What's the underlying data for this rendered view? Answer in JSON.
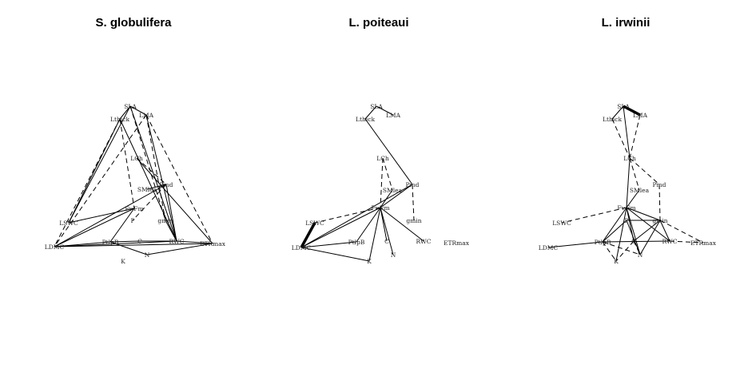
{
  "panels": [
    {
      "id": "sglob",
      "title": "S. globulifera",
      "nodes": {
        "SLA": {
          "label": "SLA"
        },
        "LMA": {
          "label": "LMA"
        },
        "Lthick": {
          "label": "Lthick"
        },
        "LCh": {
          "label": "LCh"
        },
        "Pmd": {
          "label": "Pmd"
        },
        "SMlea": {
          "label": "SMlea"
        },
        "FvFm": {
          "label": "Fv.Fm"
        },
        "P": {
          "label": "P"
        },
        "gmin": {
          "label": "gmin"
        },
        "LSWC": {
          "label": "LSWC"
        },
        "LDMC": {
          "label": "LDMC"
        },
        "PtlpB": {
          "label": "PtlpB"
        },
        "C": {
          "label": "C"
        },
        "RWC": {
          "label": "RWC"
        },
        "ETRmax": {
          "label": "ETRmax"
        },
        "N": {
          "label": "N"
        },
        "K": {
          "label": "K"
        }
      },
      "edges": [
        {
          "a": "SLA",
          "b": "LMA",
          "s": "solid"
        },
        {
          "a": "SLA",
          "b": "Lthick",
          "s": "solid"
        },
        {
          "a": "Lthick",
          "b": "LSWC",
          "s": "solid"
        },
        {
          "a": "Lthick",
          "b": "LDMC",
          "s": "dashed"
        },
        {
          "a": "Lthick",
          "b": "FvFm",
          "s": "dashed"
        },
        {
          "a": "Lthick",
          "b": "RWC",
          "s": "solid"
        },
        {
          "a": "SLA",
          "b": "LSWC",
          "s": "solid"
        },
        {
          "a": "SLA",
          "b": "RWC",
          "s": "solid"
        },
        {
          "a": "SLA",
          "b": "gmin",
          "s": "dashed"
        },
        {
          "a": "LMA",
          "b": "RWC",
          "s": "solid"
        },
        {
          "a": "LMA",
          "b": "ETRmax",
          "s": "dashed"
        },
        {
          "a": "LMA",
          "b": "gmin",
          "s": "dashed"
        },
        {
          "a": "LMA",
          "b": "LDMC",
          "s": "dashed"
        },
        {
          "a": "LCh",
          "b": "ETRmax",
          "s": "solid"
        },
        {
          "a": "LCh",
          "b": "Pmd",
          "s": "dashed"
        },
        {
          "a": "Pmd",
          "b": "P",
          "s": "dashed"
        },
        {
          "a": "Pmd",
          "b": "LDMC",
          "s": "solid"
        },
        {
          "a": "Pmd",
          "b": "RWC",
          "s": "solid"
        },
        {
          "a": "SMlea",
          "b": "Pmd",
          "s": "solid"
        },
        {
          "a": "FvFm",
          "b": "LDMC",
          "s": "solid"
        },
        {
          "a": "FvFm",
          "b": "PtlpB",
          "s": "solid"
        },
        {
          "a": "LSWC",
          "b": "FvFm",
          "s": "solid"
        },
        {
          "a": "LDMC",
          "b": "RWC",
          "s": "solid"
        },
        {
          "a": "LDMC",
          "b": "ETRmax",
          "s": "solid"
        },
        {
          "a": "LDMC",
          "b": "PtlpB",
          "s": "solid"
        },
        {
          "a": "PtlpB",
          "b": "C",
          "s": "solid"
        },
        {
          "a": "C",
          "b": "RWC",
          "s": "solid"
        },
        {
          "a": "RWC",
          "b": "ETRmax",
          "s": "solid"
        },
        {
          "a": "ETRmax",
          "b": "N",
          "s": "solid"
        },
        {
          "a": "gmin",
          "b": "RWC",
          "s": "solid"
        },
        {
          "a": "PtlpB",
          "b": "N",
          "s": "solid"
        }
      ]
    },
    {
      "id": "lpoit",
      "title": "L. poiteaui",
      "nodes": {
        "SLA": {
          "label": "SLA"
        },
        "LMA": {
          "label": "LMA"
        },
        "Lthick": {
          "label": "Lthick"
        },
        "LCh": {
          "label": "LCh"
        },
        "Pmd": {
          "label": "Pmd"
        },
        "SMlea": {
          "label": "SMlea"
        },
        "FvFm": {
          "label": "Fv.Fm"
        },
        "gmin": {
          "label": "gmin"
        },
        "LSWC": {
          "label": "LSWC"
        },
        "LDMC": {
          "label": "LDMC"
        },
        "PtlpB": {
          "label": "PtlpB"
        },
        "C": {
          "label": "C"
        },
        "RWC": {
          "label": "RWC"
        },
        "ETRmax": {
          "label": "ETRmax"
        },
        "N": {
          "label": "N"
        },
        "K": {
          "label": "K"
        }
      },
      "edges": [
        {
          "a": "SLA",
          "b": "LMA",
          "s": "solid"
        },
        {
          "a": "SLA",
          "b": "Lthick",
          "s": "solid"
        },
        {
          "a": "Lthick",
          "b": "Pmd",
          "s": "solid"
        },
        {
          "a": "LCh",
          "b": "FvFm",
          "s": "dashed"
        },
        {
          "a": "LCh",
          "b": "SMlea",
          "s": "dashed"
        },
        {
          "a": "Pmd",
          "b": "gmin",
          "s": "dashed"
        },
        {
          "a": "Pmd",
          "b": "LDMC",
          "s": "solid"
        },
        {
          "a": "Pmd",
          "b": "FvFm",
          "s": "solid"
        },
        {
          "a": "SMlea",
          "b": "FvFm",
          "s": "solid"
        },
        {
          "a": "FvFm",
          "b": "LSWC",
          "s": "dashed"
        },
        {
          "a": "FvFm",
          "b": "LDMC",
          "s": "solid"
        },
        {
          "a": "FvFm",
          "b": "PtlpB",
          "s": "solid"
        },
        {
          "a": "FvFm",
          "b": "C",
          "s": "solid"
        },
        {
          "a": "FvFm",
          "b": "N",
          "s": "solid"
        },
        {
          "a": "FvFm",
          "b": "RWC",
          "s": "solid"
        },
        {
          "a": "FvFm",
          "b": "K",
          "s": "solid"
        },
        {
          "a": "LDMC",
          "b": "K",
          "s": "solid"
        },
        {
          "a": "LDMC",
          "b": "PtlpB",
          "s": "solid"
        },
        {
          "a": "LSWC",
          "b": "LDMC",
          "s": "thick"
        }
      ]
    },
    {
      "id": "lirw",
      "title": "L. irwinii",
      "nodes": {
        "SLA": {
          "label": "SLA"
        },
        "LMA": {
          "label": "LMA"
        },
        "Lthick": {
          "label": "Lthick"
        },
        "LCh": {
          "label": "LCh"
        },
        "Pmd": {
          "label": "Pmd"
        },
        "SMlea": {
          "label": "SMlea"
        },
        "FvFm": {
          "label": "Fv.Fm"
        },
        "P": {
          "label": "P"
        },
        "gmin": {
          "label": "gmin"
        },
        "LSWC": {
          "label": "LSWC"
        },
        "LDMC": {
          "label": "LDMC"
        },
        "PtlpB": {
          "label": "PtlpB"
        },
        "C": {
          "label": "C"
        },
        "RWC": {
          "label": "RWC"
        },
        "ETRmax": {
          "label": "ETRmax"
        },
        "N": {
          "label": "N"
        },
        "K": {
          "label": "K"
        }
      },
      "edges": [
        {
          "a": "SLA",
          "b": "LMA",
          "s": "thick"
        },
        {
          "a": "SLA",
          "b": "Lthick",
          "s": "solid"
        },
        {
          "a": "Lthick",
          "b": "LCh",
          "s": "dashed"
        },
        {
          "a": "LMA",
          "b": "LCh",
          "s": "dashed"
        },
        {
          "a": "SLA",
          "b": "LCh",
          "s": "solid"
        },
        {
          "a": "LCh",
          "b": "FvFm",
          "s": "solid"
        },
        {
          "a": "LCh",
          "b": "Pmd",
          "s": "dashed"
        },
        {
          "a": "LCh",
          "b": "SMlea",
          "s": "dashed"
        },
        {
          "a": "Pmd",
          "b": "gmin",
          "s": "dashed"
        },
        {
          "a": "SMlea",
          "b": "FvFm",
          "s": "solid"
        },
        {
          "a": "FvFm",
          "b": "LSWC",
          "s": "dashed"
        },
        {
          "a": "FvFm",
          "b": "PtlpB",
          "s": "solid"
        },
        {
          "a": "FvFm",
          "b": "gmin",
          "s": "solid"
        },
        {
          "a": "FvFm",
          "b": "C",
          "s": "solid"
        },
        {
          "a": "FvFm",
          "b": "N",
          "s": "solid"
        },
        {
          "a": "FvFm",
          "b": "RWC",
          "s": "solid"
        },
        {
          "a": "FvFm",
          "b": "K",
          "s": "solid"
        },
        {
          "a": "P",
          "b": "N",
          "s": "solid"
        },
        {
          "a": "P",
          "b": "PtlpB",
          "s": "solid"
        },
        {
          "a": "gmin",
          "b": "ETRmax",
          "s": "dashed"
        },
        {
          "a": "gmin",
          "b": "RWC",
          "s": "solid"
        },
        {
          "a": "gmin",
          "b": "N",
          "s": "solid"
        },
        {
          "a": "gmin",
          "b": "C",
          "s": "solid"
        },
        {
          "a": "gmin",
          "b": "P",
          "s": "solid"
        },
        {
          "a": "RWC",
          "b": "ETRmax",
          "s": "dashed"
        },
        {
          "a": "RWC",
          "b": "PtlpB",
          "s": "solid"
        },
        {
          "a": "PtlpB",
          "b": "N",
          "s": "dashed"
        },
        {
          "a": "PtlpB",
          "b": "K",
          "s": "dashed"
        },
        {
          "a": "C",
          "b": "N",
          "s": "dashed"
        },
        {
          "a": "LDMC",
          "b": "PtlpB",
          "s": "solid"
        },
        {
          "a": "C",
          "b": "K",
          "s": "dashed"
        }
      ]
    }
  ]
}
